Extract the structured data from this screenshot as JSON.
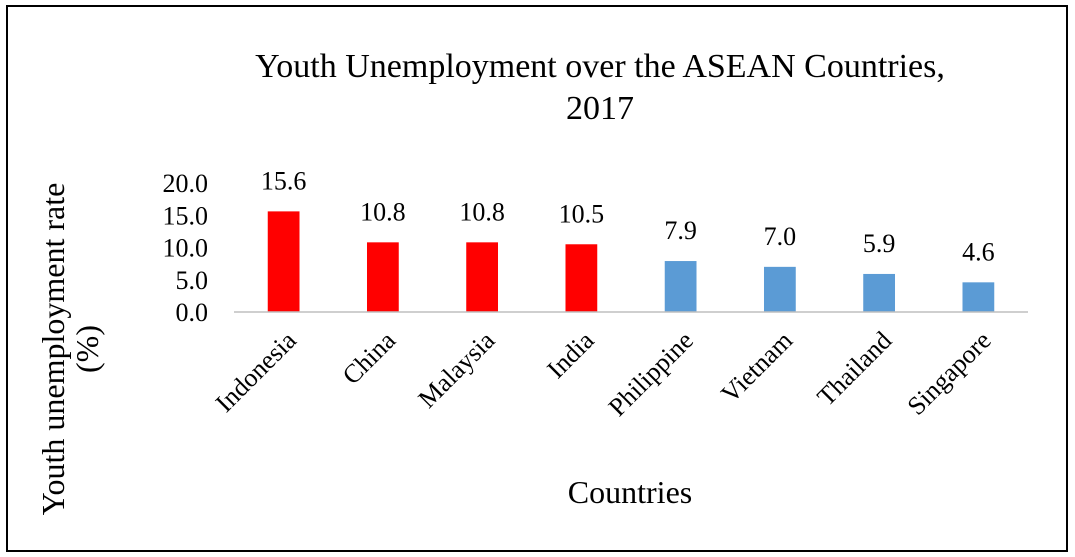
{
  "chart_data": {
    "type": "bar",
    "title": "Youth Unemployment over the ASEAN Countries, 2017",
    "title_lines": [
      "Youth Unemployment over the ASEAN Countries,",
      "2017"
    ],
    "xlabel": "Countries",
    "ylabel": "Youth unemployment rate (%)",
    "ylabel_lines": [
      "Youth unemployment rate",
      "(%)"
    ],
    "ylim": [
      0,
      20
    ],
    "yticks": [
      "0.0",
      "5.0",
      "10.0",
      "15.0",
      "20.0"
    ],
    "grid": false,
    "legend": "none",
    "categories": [
      "Indonesia",
      "China",
      "Malaysia",
      "India",
      "Philippine",
      "Vietnam",
      "Thailand",
      "Singapore"
    ],
    "values": [
      15.6,
      10.8,
      10.8,
      10.5,
      7.9,
      7.0,
      5.9,
      4.6
    ],
    "value_labels": [
      "15.6",
      "10.8",
      "10.8",
      "10.5",
      "7.9",
      "7.0",
      "5.9",
      "4.6"
    ],
    "bar_colors": [
      "#ff0000",
      "#ff0000",
      "#ff0000",
      "#ff0000",
      "#5b9bd5",
      "#5b9bd5",
      "#5b9bd5",
      "#5b9bd5"
    ]
  }
}
